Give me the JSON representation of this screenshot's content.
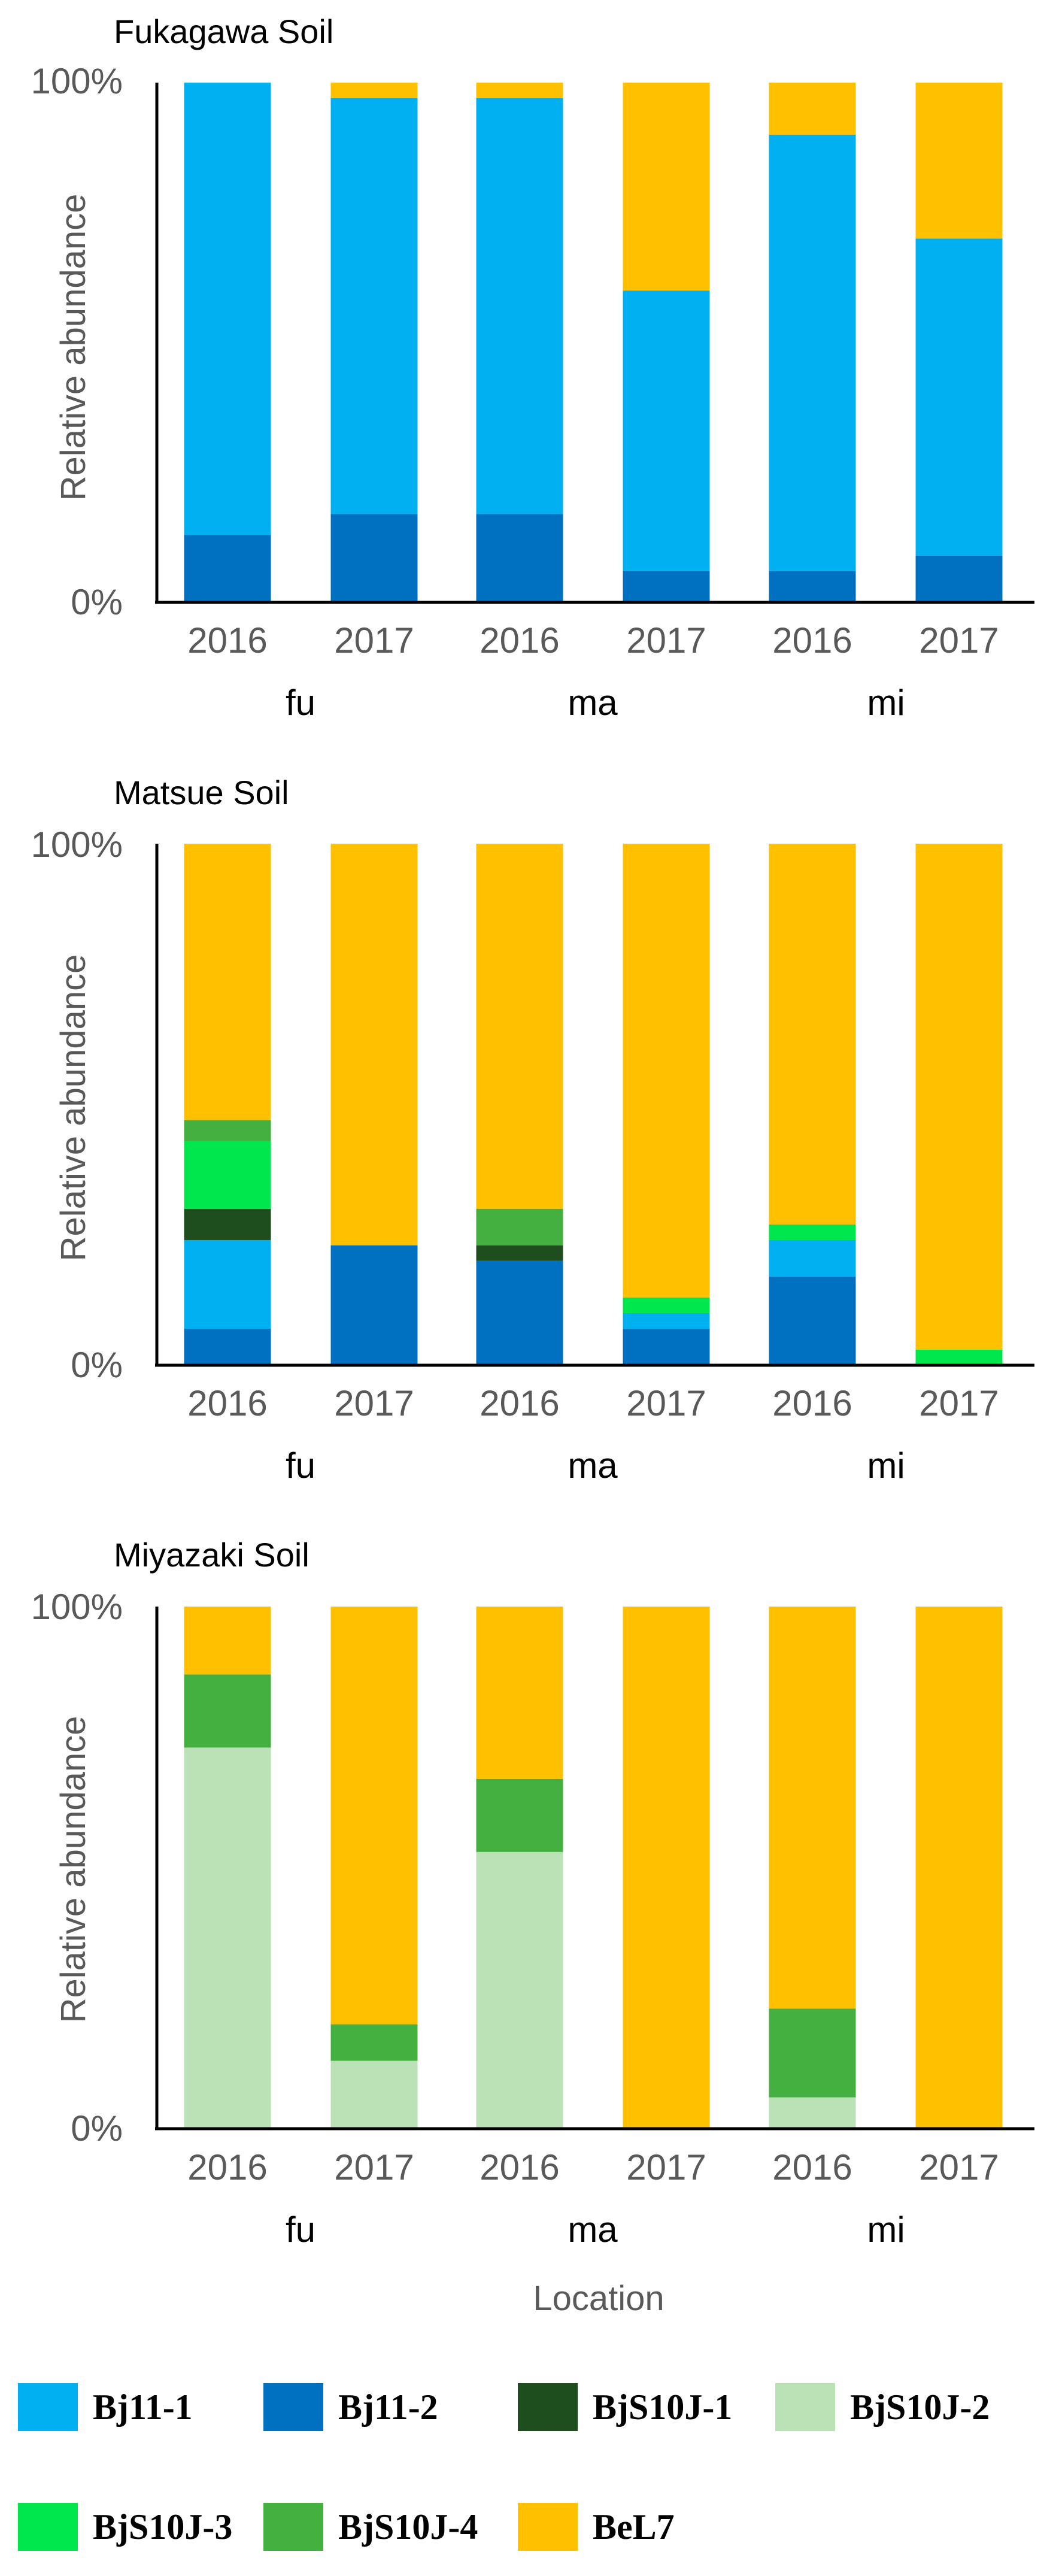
{
  "chart_data": [
    {
      "type": "bar",
      "stacked": true,
      "title": "Fukagawa Soil",
      "ylabel": "Relative abundance",
      "ylim": [
        0,
        100
      ],
      "yticks": [
        "0%",
        "100%"
      ],
      "categories": [
        "2016",
        "2017",
        "2016",
        "2017",
        "2016",
        "2017"
      ],
      "groups": [
        "fu",
        "ma",
        "mi"
      ],
      "series": [
        {
          "name": "Bj11-2",
          "color": "#0070C0",
          "values": [
            13,
            17,
            17,
            6,
            6,
            9
          ]
        },
        {
          "name": "Bj11-1",
          "color": "#00B0F0",
          "values": [
            87,
            80,
            80,
            54,
            84,
            61
          ]
        },
        {
          "name": "BjS10J-1",
          "color": "#1E4D1E",
          "values": [
            0,
            0,
            0,
            0,
            0,
            0
          ]
        },
        {
          "name": "BjS10J-2",
          "color": "#BBE2B6",
          "values": [
            0,
            0,
            0,
            0,
            0,
            0
          ]
        },
        {
          "name": "BjS10J-3",
          "color": "#00E64D",
          "values": [
            0,
            0,
            0,
            0,
            0,
            0
          ]
        },
        {
          "name": "BjS10J-4",
          "color": "#44B03F",
          "values": [
            0,
            0,
            0,
            0,
            0,
            0
          ]
        },
        {
          "name": "BeL7",
          "color": "#FFC000",
          "values": [
            0,
            3,
            3,
            40,
            10,
            30
          ]
        }
      ]
    },
    {
      "type": "bar",
      "stacked": true,
      "title": "Matsue Soil",
      "ylabel": "Relative abundance",
      "ylim": [
        0,
        100
      ],
      "yticks": [
        "0%",
        "100%"
      ],
      "categories": [
        "2016",
        "2017",
        "2016",
        "2017",
        "2016",
        "2017"
      ],
      "groups": [
        "fu",
        "ma",
        "mi"
      ],
      "series": [
        {
          "name": "Bj11-2",
          "color": "#0070C0",
          "values": [
            7,
            23,
            20,
            7,
            17,
            0
          ]
        },
        {
          "name": "Bj11-1",
          "color": "#00B0F0",
          "values": [
            17,
            0,
            0,
            3,
            7,
            0
          ]
        },
        {
          "name": "BjS10J-1",
          "color": "#1E4D1E",
          "values": [
            6,
            0,
            3,
            0,
            0,
            0
          ]
        },
        {
          "name": "BjS10J-2",
          "color": "#BBE2B6",
          "values": [
            0,
            0,
            0,
            0,
            0,
            0
          ]
        },
        {
          "name": "BjS10J-3",
          "color": "#00E64D",
          "values": [
            13,
            0,
            0,
            3,
            3,
            3
          ]
        },
        {
          "name": "BjS10J-4",
          "color": "#44B03F",
          "values": [
            4,
            0,
            7,
            0,
            0,
            0
          ]
        },
        {
          "name": "BeL7",
          "color": "#FFC000",
          "values": [
            53,
            77,
            70,
            87,
            73,
            97
          ]
        }
      ]
    },
    {
      "type": "bar",
      "stacked": true,
      "title": "Miyazaki Soil",
      "ylabel": "Relative abundance",
      "xlabel": "Location",
      "ylim": [
        0,
        100
      ],
      "yticks": [
        "0%",
        "100%"
      ],
      "categories": [
        "2016",
        "2017",
        "2016",
        "2017",
        "2016",
        "2017"
      ],
      "groups": [
        "fu",
        "ma",
        "mi"
      ],
      "series": [
        {
          "name": "Bj11-2",
          "color": "#0070C0",
          "values": [
            0,
            0,
            0,
            0,
            0,
            0
          ]
        },
        {
          "name": "Bj11-1",
          "color": "#00B0F0",
          "values": [
            0,
            0,
            0,
            0,
            0,
            0
          ]
        },
        {
          "name": "BjS10J-1",
          "color": "#1E4D1E",
          "values": [
            0,
            0,
            0,
            0,
            0,
            0
          ]
        },
        {
          "name": "BjS10J-2",
          "color": "#BBE2B6",
          "values": [
            73,
            13,
            53,
            0,
            6,
            0
          ]
        },
        {
          "name": "BjS10J-3",
          "color": "#00E64D",
          "values": [
            0,
            0,
            0,
            0,
            0,
            0
          ]
        },
        {
          "name": "BjS10J-4",
          "color": "#44B03F",
          "values": [
            14,
            7,
            14,
            0,
            17,
            0
          ]
        },
        {
          "name": "BeL7",
          "color": "#FFC000",
          "values": [
            13,
            80,
            33,
            100,
            77,
            100
          ]
        }
      ]
    }
  ],
  "legend": {
    "placement": "bottom",
    "items": [
      {
        "name": "Bj11-1",
        "color": "#00B0F0"
      },
      {
        "name": "Bj11-2",
        "color": "#0070C0"
      },
      {
        "name": "BjS10J-1",
        "color": "#1E4D1E"
      },
      {
        "name": "BjS10J-2",
        "color": "#BBE2B6"
      },
      {
        "name": "BjS10J-3",
        "color": "#00E64D"
      },
      {
        "name": "BjS10J-4",
        "color": "#44B03F"
      },
      {
        "name": "BeL7",
        "color": "#FFC000"
      }
    ]
  }
}
